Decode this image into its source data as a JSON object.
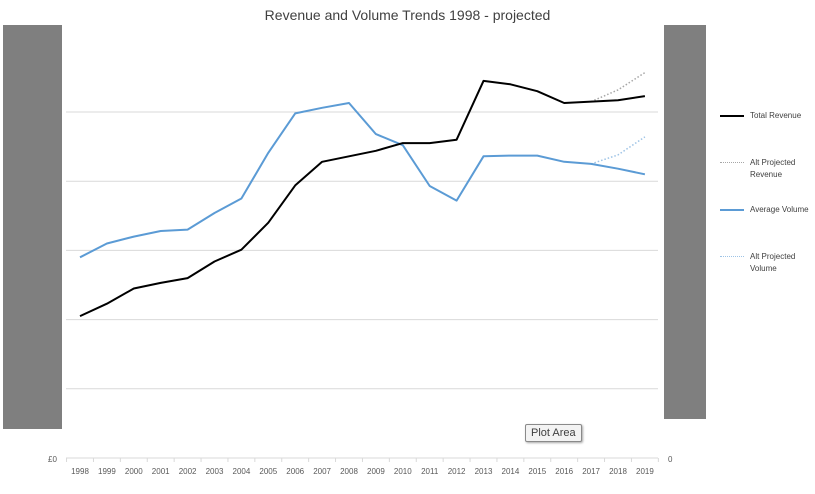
{
  "chart_data": {
    "type": "line",
    "title": "Revenue and Volume Trends 1998 - projected",
    "categories": [
      "1998",
      "1999",
      "2000",
      "2001",
      "2002",
      "2003",
      "2004",
      "2005",
      "2006",
      "2007",
      "2008",
      "2009",
      "2010",
      "2011",
      "2012",
      "2013",
      "2014",
      "2015",
      "2016",
      "2017",
      "2018",
      "2019"
    ],
    "y_left_label": "£0",
    "y_right_label": "0",
    "ylim": [
      0,
      6
    ],
    "gridlines": [
      0,
      1,
      2,
      3,
      4,
      5
    ],
    "series": [
      {
        "name": "Total Revenue",
        "color": "#000000",
        "style": "solid",
        "values": [
          2.05,
          2.23,
          2.45,
          2.53,
          2.6,
          2.84,
          3.01,
          3.4,
          3.94,
          4.28,
          4.36,
          4.44,
          4.55,
          4.55,
          4.6,
          5.45,
          5.4,
          5.3,
          5.13,
          5.15,
          5.17,
          5.23
        ]
      },
      {
        "name": "Alt Projected Revenue",
        "color": "#a6a6a6",
        "style": "dotted",
        "values": [
          null,
          null,
          null,
          null,
          null,
          null,
          null,
          null,
          null,
          null,
          null,
          null,
          null,
          null,
          null,
          null,
          null,
          null,
          null,
          5.15,
          5.32,
          5.57
        ]
      },
      {
        "name": "Average Volume",
        "color": "#5b9bd5",
        "style": "solid",
        "values": [
          2.9,
          3.1,
          3.2,
          3.28,
          3.3,
          3.54,
          3.75,
          4.41,
          4.98,
          5.06,
          5.13,
          4.68,
          4.52,
          3.93,
          3.72,
          4.36,
          4.37,
          4.37,
          4.28,
          4.25,
          4.18,
          4.1
        ]
      },
      {
        "name": "Alt Projected Volume",
        "color": "#9dc3e6",
        "style": "dotted",
        "values": [
          null,
          null,
          null,
          null,
          null,
          null,
          null,
          null,
          null,
          null,
          null,
          null,
          null,
          null,
          null,
          null,
          null,
          null,
          null,
          4.25,
          4.38,
          4.64
        ]
      }
    ],
    "legend_position": "right",
    "grid": true
  },
  "tooltip": {
    "label": "Plot Area"
  },
  "legend": [
    {
      "label": "Total Revenue",
      "color": "#000000",
      "style": "solid"
    },
    {
      "label": "Alt Projected Revenue",
      "color": "#a6a6a6",
      "style": "dotted"
    },
    {
      "label": "Average Volume",
      "color": "#5b9bd5",
      "style": "solid"
    },
    {
      "label": "Alt Projected Volume",
      "color": "#9dc3e6",
      "style": "dotted"
    }
  ]
}
